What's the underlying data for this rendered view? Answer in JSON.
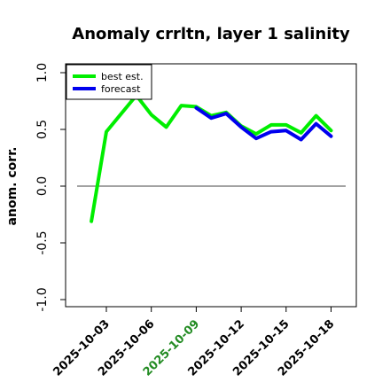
{
  "chart_data": {
    "type": "line",
    "title": "Anomaly crrltn, layer 1 salinity",
    "xlabel": "",
    "ylabel": "anom. corr.",
    "ylim": [
      -1.0,
      1.0
    ],
    "y_ticks": [
      "-1.0",
      "-0.5",
      "0.0",
      "0.5",
      "1.0"
    ],
    "x_ticks": [
      {
        "label": "2025-10-03",
        "color": "#000000"
      },
      {
        "label": "2025-10-06",
        "color": "#000000"
      },
      {
        "label": "2025-10-09",
        "color": "#228B22"
      },
      {
        "label": "2025-10-12",
        "color": "#000000"
      },
      {
        "label": "2025-10-15",
        "color": "#000000"
      },
      {
        "label": "2025-10-18",
        "color": "#000000"
      }
    ],
    "reference_line": 0.0,
    "legend": {
      "position": "top-left"
    },
    "series": [
      {
        "name": "best est.",
        "color": "#00ee00",
        "x": [
          "2025-10-02",
          "2025-10-03",
          "2025-10-04",
          "2025-10-05",
          "2025-10-06",
          "2025-10-07",
          "2025-10-08",
          "2025-10-09",
          "2025-10-10",
          "2025-10-11",
          "2025-10-12",
          "2025-10-13",
          "2025-10-14",
          "2025-10-15",
          "2025-10-16",
          "2025-10-17",
          "2025-10-18"
        ],
        "values": [
          -0.31,
          0.48,
          0.64,
          0.8,
          0.63,
          0.52,
          0.71,
          0.7,
          0.62,
          0.65,
          0.53,
          0.46,
          0.54,
          0.54,
          0.47,
          0.62,
          0.49
        ]
      },
      {
        "name": "forecast",
        "color": "#0000ee",
        "x": [
          "2025-10-09",
          "2025-10-10",
          "2025-10-11",
          "2025-10-12",
          "2025-10-13",
          "2025-10-14",
          "2025-10-15",
          "2025-10-16",
          "2025-10-17",
          "2025-10-18"
        ],
        "values": [
          0.69,
          0.6,
          0.64,
          0.52,
          0.42,
          0.48,
          0.49,
          0.41,
          0.55,
          0.44
        ]
      }
    ]
  }
}
